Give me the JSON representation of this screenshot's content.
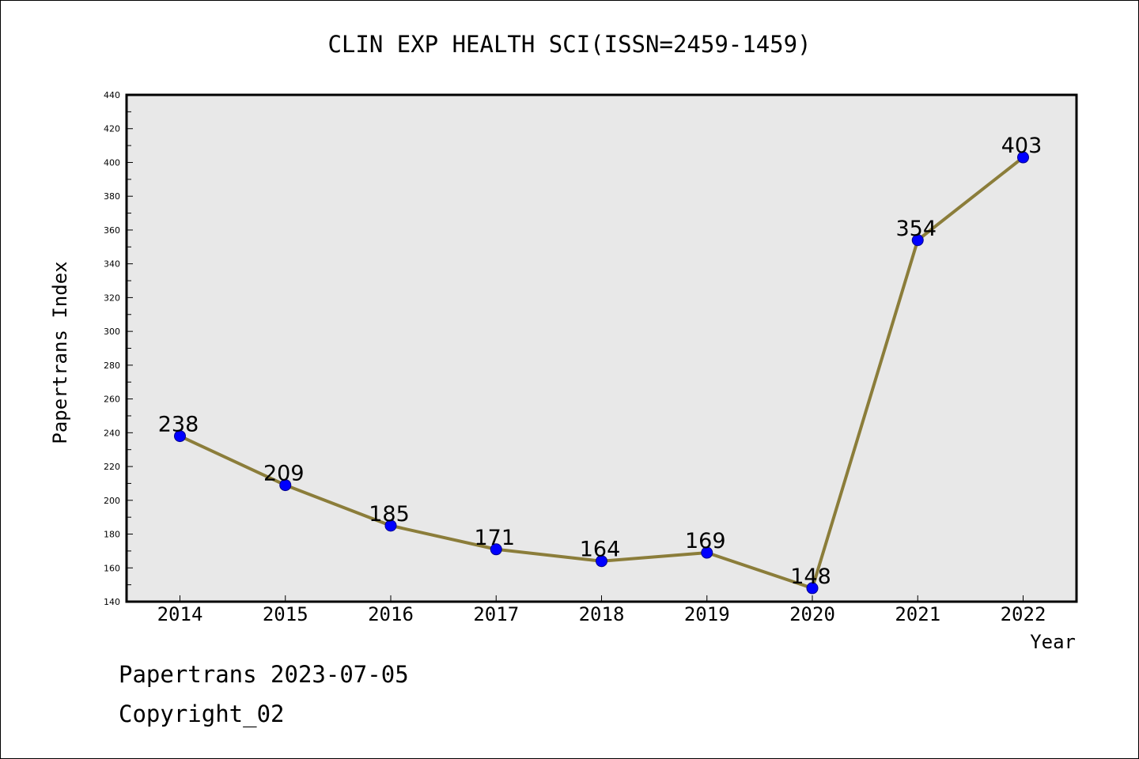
{
  "chart_data": {
    "type": "line",
    "title": "CLIN EXP HEALTH SCI(ISSN=2459-1459)",
    "xlabel": "Year",
    "ylabel": "Papertrans Index",
    "categories": [
      "2014",
      "2015",
      "2016",
      "2017",
      "2018",
      "2019",
      "2020",
      "2021",
      "2022"
    ],
    "series": [
      {
        "values": [
          238,
          209,
          185,
          171,
          164,
          169,
          148,
          354,
          403
        ]
      }
    ],
    "ylim": [
      140,
      440
    ],
    "yticks": [
      140,
      160,
      180,
      200,
      220,
      240,
      260,
      280,
      300,
      320,
      340,
      360,
      380,
      400,
      420,
      440
    ],
    "line_color": "#8B7D3A",
    "marker_color": "#0000FF",
    "plot_background": "#E8E8E8",
    "grid": false,
    "data_labels": true
  },
  "footer": {
    "line1": "Papertrans 2023-07-05",
    "line2": "Copyright_02"
  }
}
